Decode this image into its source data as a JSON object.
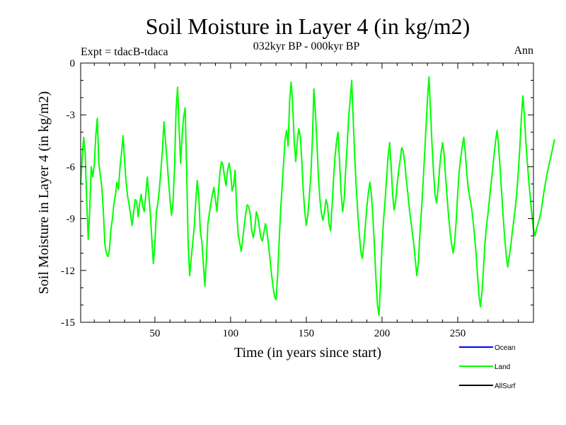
{
  "chart_data": {
    "type": "line",
    "title": "Soil Moisture in Layer 4 (in kg/m2)",
    "subtitle": "032kyr BP - 000kyr BP",
    "experiment_label": "Expt = tdacB-tdaca",
    "season_label": "Ann",
    "xlabel": "Time (in years since start)",
    "ylabel": "Soil Moisture in Layer 4 (in kg/m2)",
    "xlim": [
      1,
      300
    ],
    "ylim": [
      -15,
      0
    ],
    "x_ticks": [
      50,
      100,
      150,
      200,
      250
    ],
    "y_ticks": [
      0,
      -3,
      -6,
      -9,
      -12,
      -15
    ],
    "legend_position": "bottom-right",
    "legend": [
      {
        "name": "Ocean",
        "color": "#0000ff"
      },
      {
        "name": "Land",
        "color": "#00ff00"
      },
      {
        "name": "AllSurf",
        "color": "#000000"
      }
    ],
    "series": [
      {
        "name": "Land",
        "color": "#00ff00",
        "x_start": 1,
        "x_step": 1,
        "values": [
          -7.0,
          -5.5,
          -4.3,
          -5.2,
          -8.0,
          -10.2,
          -8.5,
          -6.0,
          -6.6,
          -5.9,
          -4.2,
          -3.2,
          -5.8,
          -6.5,
          -7.2,
          -8.6,
          -10.5,
          -11.0,
          -11.2,
          -10.8,
          -9.6,
          -9.0,
          -8.1,
          -7.6,
          -6.9,
          -7.3,
          -6.0,
          -5.2,
          -4.2,
          -5.6,
          -6.9,
          -7.7,
          -8.2,
          -8.8,
          -9.4,
          -8.6,
          -7.9,
          -8.0,
          -8.9,
          -8.1,
          -7.6,
          -8.3,
          -8.6,
          -7.6,
          -6.6,
          -7.6,
          -8.7,
          -10.2,
          -11.6,
          -10.5,
          -8.6,
          -8.1,
          -7.3,
          -6.2,
          -5.0,
          -3.4,
          -4.5,
          -5.6,
          -6.8,
          -7.9,
          -8.8,
          -8.1,
          -6.0,
          -2.7,
          -1.4,
          -3.7,
          -5.8,
          -4.2,
          -3.1,
          -2.6,
          -6.2,
          -10.5,
          -12.3,
          -11.3,
          -10.4,
          -9.5,
          -8.0,
          -6.8,
          -7.7,
          -9.7,
          -10.3,
          -11.6,
          -12.9,
          -11.4,
          -9.3,
          -8.7,
          -8.1,
          -7.6,
          -7.2,
          -7.9,
          -8.6,
          -7.4,
          -6.3,
          -5.7,
          -5.9,
          -6.6,
          -7.1,
          -6.2,
          -5.8,
          -6.3,
          -7.4,
          -7.1,
          -6.2,
          -8.5,
          -9.9,
          -10.4,
          -10.9,
          -10.2,
          -9.4,
          -8.7,
          -8.2,
          -8.3,
          -8.8,
          -9.7,
          -10.1,
          -9.6,
          -8.6,
          -8.9,
          -9.5,
          -10.1,
          -10.3,
          -9.8,
          -9.3,
          -9.7,
          -10.5,
          -11.3,
          -12.2,
          -12.9,
          -13.5,
          -13.7,
          -12.4,
          -10.5,
          -8.6,
          -7.2,
          -5.8,
          -4.4,
          -3.9,
          -4.8,
          -2.2,
          -1.1,
          -2.4,
          -4.5,
          -5.7,
          -4.6,
          -3.8,
          -4.2,
          -5.6,
          -7.4,
          -8.6,
          -9.4,
          -8.8,
          -7.7,
          -6.5,
          -4.5,
          -1.5,
          -2.8,
          -4.6,
          -6.6,
          -7.9,
          -8.7,
          -9.1,
          -8.6,
          -7.9,
          -8.2,
          -9.3,
          -9.7,
          -8.3,
          -6.7,
          -5.4,
          -4.5,
          -4.0,
          -5.8,
          -7.5,
          -8.6,
          -7.9,
          -6.2,
          -4.7,
          -3.1,
          -2.1,
          -1.0,
          -3.3,
          -5.5,
          -7.2,
          -8.7,
          -9.9,
          -10.9,
          -11.3,
          -10.5,
          -9.4,
          -8.3,
          -7.5,
          -6.9,
          -7.6,
          -8.9,
          -10.6,
          -12.5,
          -14.0,
          -14.6,
          -12.8,
          -10.6,
          -9.1,
          -8.0,
          -6.7,
          -5.4,
          -4.6,
          -5.9,
          -7.6,
          -8.5,
          -8.0,
          -7.0,
          -6.2,
          -5.6,
          -4.9,
          -5.1,
          -5.8,
          -6.7,
          -7.5,
          -8.4,
          -9.1,
          -9.8,
          -10.5,
          -11.4,
          -12.3,
          -11.6,
          -9.9,
          -8.6,
          -7.1,
          -5.5,
          -3.8,
          -2.1,
          -0.8,
          -2.7,
          -4.7,
          -6.3,
          -7.6,
          -8.1,
          -7.3,
          -6.1,
          -5.2,
          -4.6,
          -5.3,
          -6.6,
          -7.8,
          -8.9,
          -9.8,
          -10.5,
          -11.0,
          -10.3,
          -9.1,
          -7.5,
          -6.2,
          -5.5,
          -4.8,
          -4.3,
          -5.2,
          -6.4,
          -7.3,
          -7.8,
          -8.3,
          -9.0,
          -9.9,
          -10.9,
          -12.2,
          -13.4,
          -14.1,
          -13.3,
          -11.9,
          -10.4,
          -9.4,
          -8.7,
          -7.8,
          -7.0,
          -6.2,
          -5.3,
          -4.5,
          -3.9,
          -4.8,
          -6.1,
          -7.5,
          -8.9,
          -10.1,
          -11.1,
          -11.8,
          -11.2,
          -10.6,
          -9.8,
          -9.1,
          -8.4,
          -7.5,
          -6.3,
          -4.9,
          -3.2,
          -1.9,
          -3.0,
          -4.6,
          -5.8,
          -6.9,
          -7.9,
          -8.8,
          -9.6,
          -10.0,
          -9.6,
          -9.3,
          -9.0,
          -8.6,
          -8.0,
          -7.4,
          -6.9,
          -6.4,
          -6.0,
          -5.6,
          -5.2,
          -4.8,
          -4.4
        ]
      }
    ]
  }
}
